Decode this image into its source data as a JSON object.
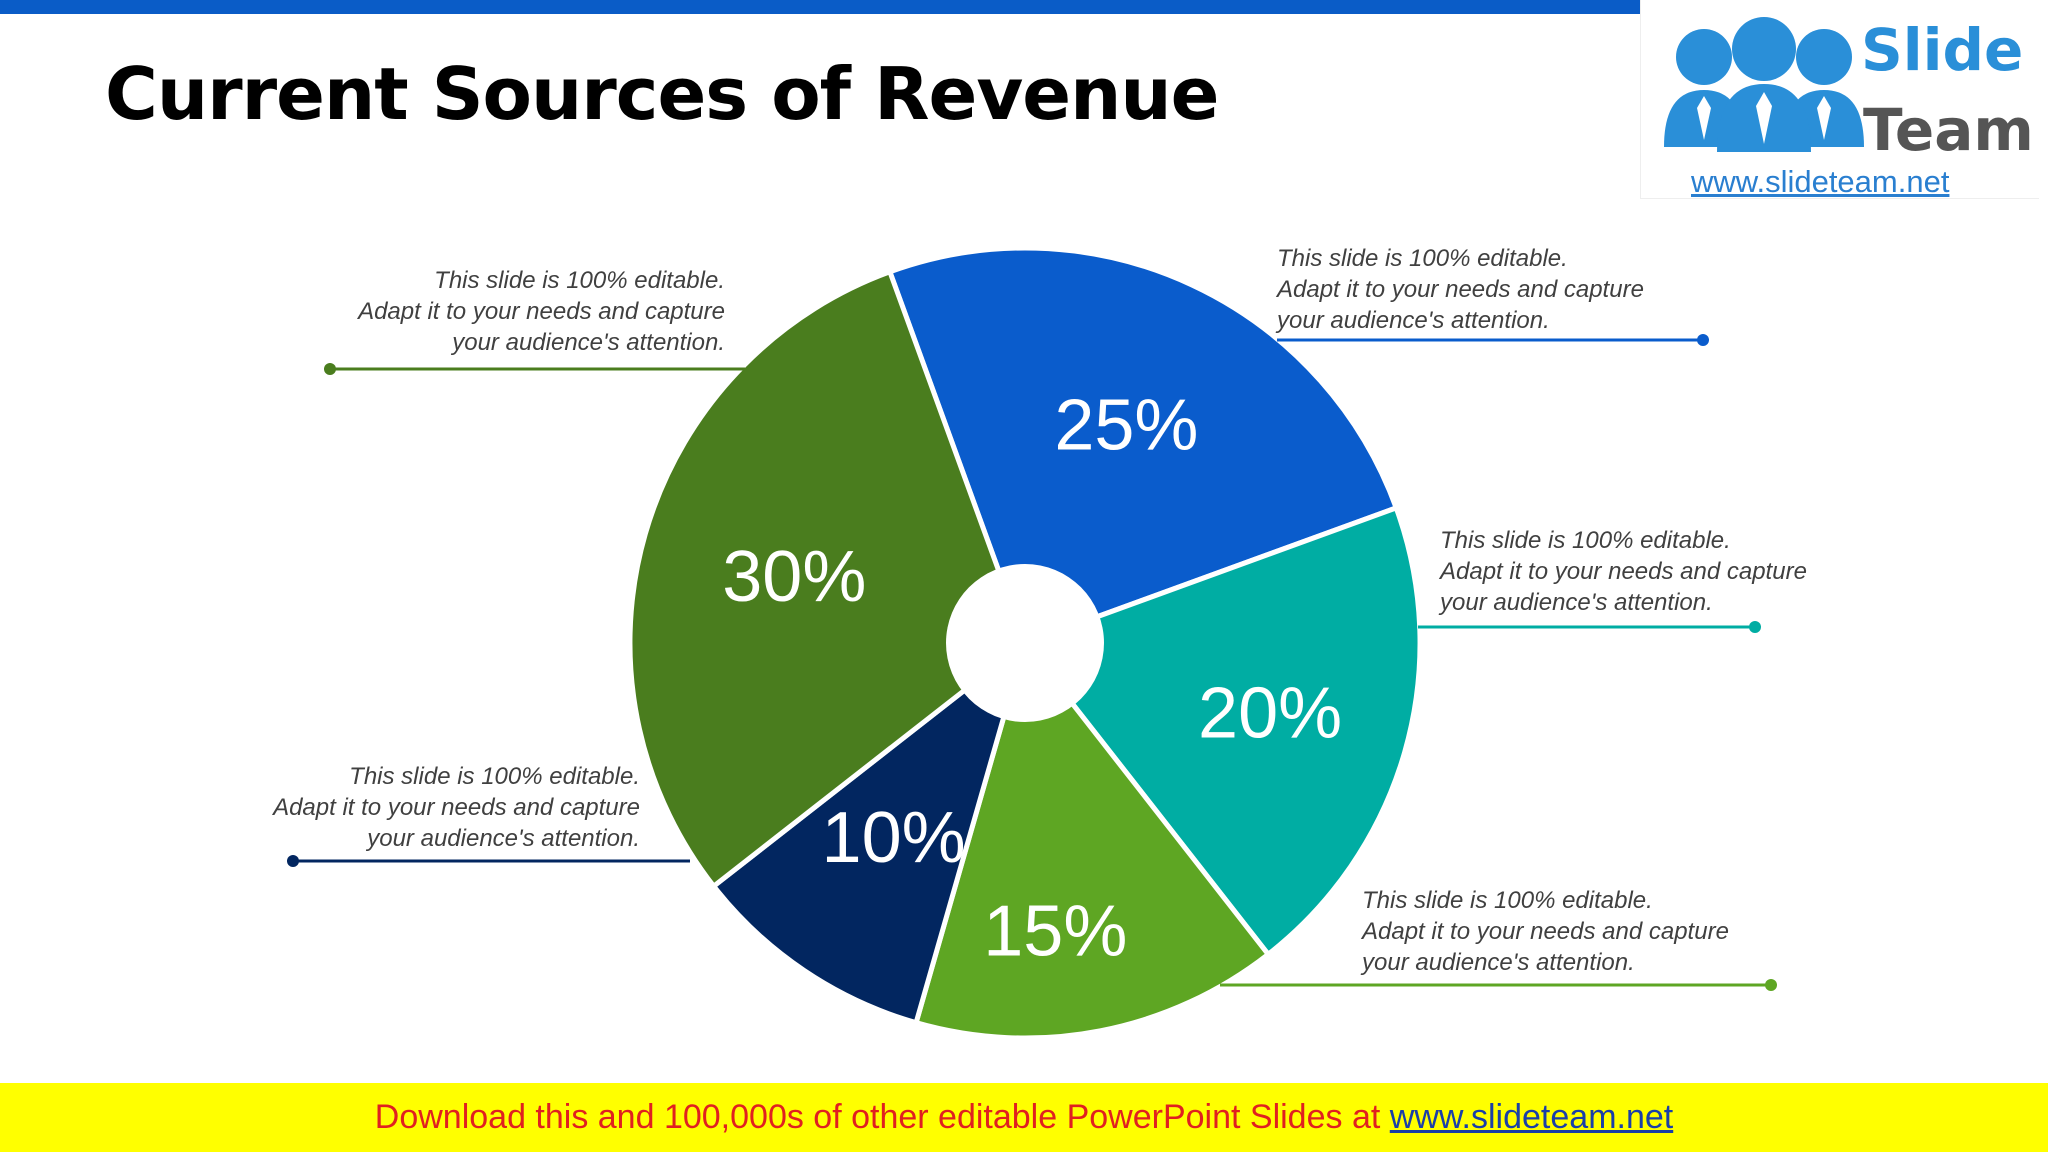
{
  "slide": {
    "title": "Current Sources of Revenue"
  },
  "logo": {
    "line1": "Slide",
    "line2": "Team",
    "url": "www.slideteam.net"
  },
  "chart_data": {
    "type": "pie",
    "title": "",
    "slices": [
      {
        "label": "25%",
        "value": 25,
        "color": "#0a5ccc"
      },
      {
        "label": "20%",
        "value": 20,
        "color": "#00ada3"
      },
      {
        "label": "15%",
        "value": 15,
        "color": "#5ea623"
      },
      {
        "label": "10%",
        "value": 10,
        "color": "#022660"
      },
      {
        "label": "30%",
        "value": 30,
        "color": "#4a7d1e"
      }
    ]
  },
  "callouts": [
    {
      "lines": [
        "This slide is 100% editable.",
        "Adapt it to your needs and capture",
        "your audience's attention."
      ],
      "color": "#4a7d1e"
    },
    {
      "lines": [
        "This slide is 100% editable.",
        "Adapt it to your needs and capture",
        "your audience's attention."
      ],
      "color": "#0a5ccc"
    },
    {
      "lines": [
        "This slide is 100% editable.",
        "Adapt it to your needs and capture",
        "your audience's attention."
      ],
      "color": "#00ada3"
    },
    {
      "lines": [
        "This slide is 100% editable.",
        "Adapt it to your needs and capture",
        "your audience's attention."
      ],
      "color": "#022660"
    },
    {
      "lines": [
        "This slide is 100% editable.",
        "Adapt it to your needs and capture",
        "your audience's attention."
      ],
      "color": "#5ea623"
    }
  ],
  "footer": {
    "text": "Download this and 100,000s of other editable PowerPoint Slides at ",
    "link": "www.slideteam.net"
  }
}
